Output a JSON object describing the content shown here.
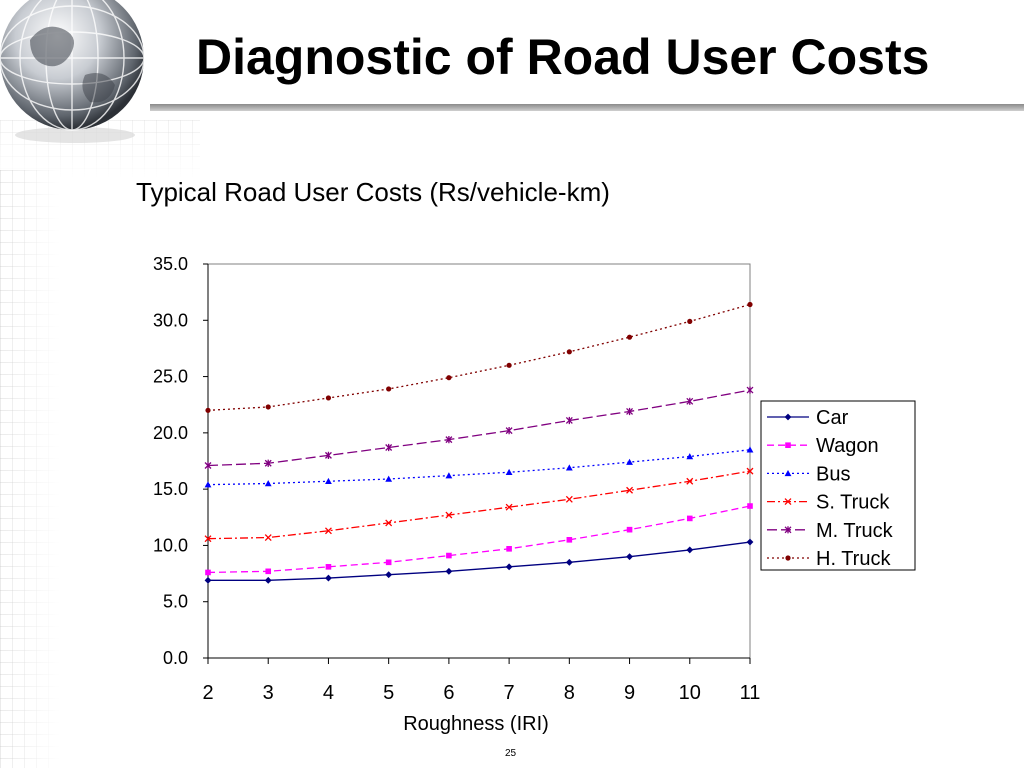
{
  "slide": {
    "title": "Diagnostic of Road User Costs",
    "page_number": "25"
  },
  "chart_data": {
    "type": "line",
    "title": "Typical Road User Costs (Rs/vehicle-km)",
    "xlabel": "Roughness (IRI)",
    "ylabel": "",
    "x": [
      2,
      3,
      4,
      5,
      6,
      7,
      8,
      9,
      10,
      11
    ],
    "x_tick_labels": [
      "2",
      "3",
      "4",
      "5",
      "6",
      "7",
      "8",
      "9",
      "10",
      "11"
    ],
    "ylim": [
      0,
      35
    ],
    "y_ticks": [
      0,
      5,
      10,
      15,
      20,
      25,
      30,
      35
    ],
    "y_tick_labels": [
      "0.0",
      "5.0",
      "10.0",
      "15.0",
      "20.0",
      "25.0",
      "30.0",
      "35.0"
    ],
    "grid": false,
    "legend_position": "right",
    "series": [
      {
        "name": "Car",
        "color": "#000080",
        "dash": "solid",
        "marker": "diamond",
        "values": [
          6.9,
          6.9,
          7.1,
          7.4,
          7.7,
          8.1,
          8.5,
          9.0,
          9.6,
          10.3
        ]
      },
      {
        "name": "Wagon",
        "color": "#ff00ff",
        "dash": "dash",
        "marker": "square",
        "values": [
          7.6,
          7.7,
          8.1,
          8.5,
          9.1,
          9.7,
          10.5,
          11.4,
          12.4,
          13.5
        ]
      },
      {
        "name": "Bus",
        "color": "#0000ff",
        "dash": "dot",
        "marker": "triangle",
        "values": [
          15.4,
          15.5,
          15.7,
          15.9,
          16.2,
          16.5,
          16.9,
          17.4,
          17.9,
          18.5
        ]
      },
      {
        "name": "S. Truck",
        "color": "#ff0000",
        "dash": "dashdot",
        "marker": "x",
        "values": [
          10.6,
          10.7,
          11.3,
          12.0,
          12.7,
          13.4,
          14.1,
          14.9,
          15.7,
          16.6
        ]
      },
      {
        "name": "M. Truck",
        "color": "#800080",
        "dash": "longdash",
        "marker": "star",
        "values": [
          17.1,
          17.3,
          18.0,
          18.7,
          19.4,
          20.2,
          21.1,
          21.9,
          22.8,
          23.8
        ]
      },
      {
        "name": "H. Truck",
        "color": "#800000",
        "dash": "dot",
        "marker": "circle",
        "values": [
          22.0,
          22.3,
          23.1,
          23.9,
          24.9,
          26.0,
          27.2,
          28.5,
          29.9,
          31.4
        ]
      }
    ]
  }
}
